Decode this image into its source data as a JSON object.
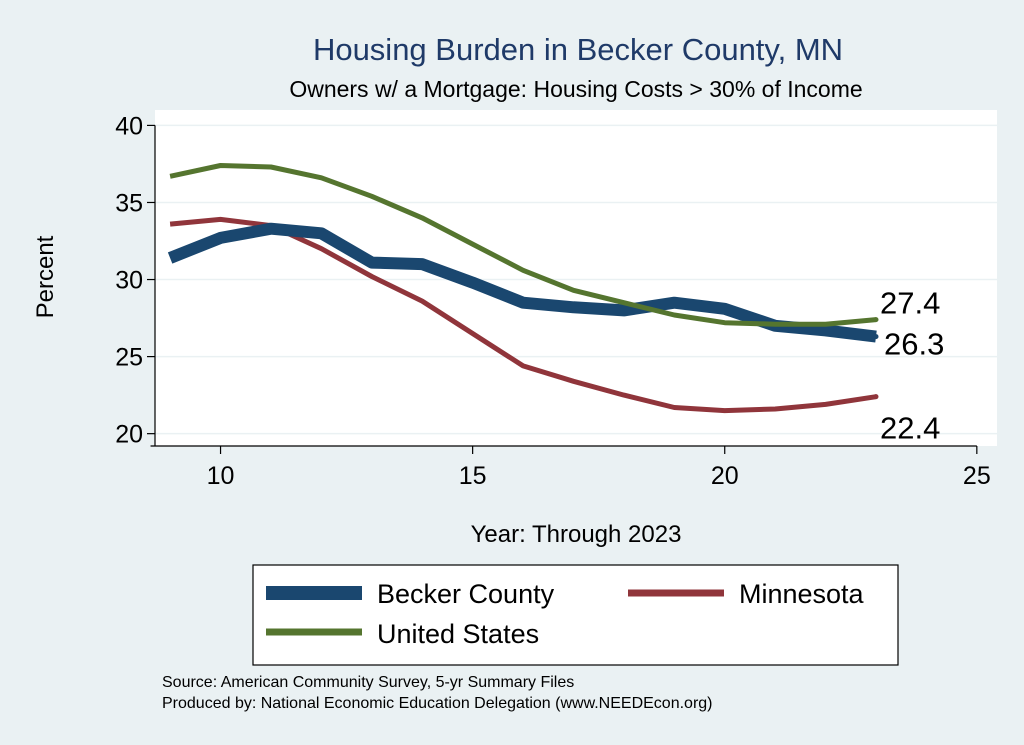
{
  "chart_data": {
    "type": "line",
    "title": "Housing Burden in Becker County, MN",
    "subtitle": "Owners w/ a Mortgage: Housing Costs > 30% of Income",
    "xlabel": "Year: Through 2023",
    "ylabel": "Percent",
    "xlim": [
      8.7,
      25.4
    ],
    "ylim": [
      19.2,
      41.0
    ],
    "xticks": [
      10,
      15,
      20,
      25
    ],
    "yticks": [
      20,
      25,
      30,
      35,
      40
    ],
    "grid": true,
    "legend_position": "bottom",
    "x": [
      9,
      10,
      11,
      12,
      13,
      14,
      15,
      16,
      17,
      18,
      19,
      20,
      21,
      22,
      23
    ],
    "series": [
      {
        "name": "Becker County",
        "color": "#1a476f",
        "values": [
          31.4,
          32.7,
          33.3,
          33.0,
          31.1,
          31.0,
          29.8,
          28.5,
          28.2,
          28.0,
          28.5,
          28.1,
          27.0,
          26.7,
          26.3
        ],
        "end_label": "26.3"
      },
      {
        "name": "Minnesota",
        "color": "#90353b",
        "values": [
          33.6,
          33.9,
          33.5,
          32.0,
          30.2,
          28.6,
          26.5,
          24.4,
          23.4,
          22.5,
          21.7,
          21.5,
          21.6,
          21.9,
          22.4
        ],
        "end_label": "22.4"
      },
      {
        "name": "United States",
        "color": "#55752f",
        "values": [
          36.7,
          37.4,
          37.3,
          36.6,
          35.4,
          34.0,
          32.3,
          30.6,
          29.3,
          28.5,
          27.7,
          27.2,
          27.1,
          27.1,
          27.4
        ],
        "end_label": "27.4"
      }
    ]
  },
  "notes": {
    "source": "Source: American Community Survey, 5-yr Summary Files",
    "produced_by": "Produced by: National Economic Education Delegation (www.NEEDEcon.org)"
  }
}
